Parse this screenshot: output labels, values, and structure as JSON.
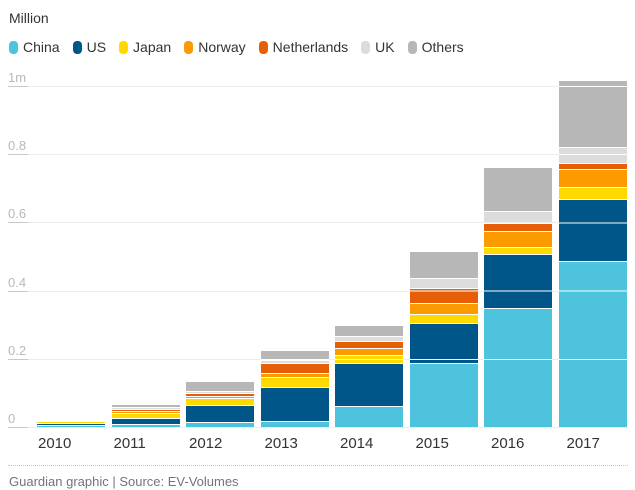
{
  "chart_data": {
    "type": "bar",
    "stacked": true,
    "title": "Million",
    "categories": [
      "2010",
      "2011",
      "2012",
      "2013",
      "2014",
      "2015",
      "2016",
      "2017"
    ],
    "series": [
      {
        "name": "China",
        "color": "#4dc3de",
        "values": [
          0.001,
          0.006,
          0.011,
          0.014,
          0.058,
          0.185,
          0.345,
          0.485
        ]
      },
      {
        "name": "US",
        "color": "#005689",
        "values": [
          0.002,
          0.016,
          0.048,
          0.096,
          0.122,
          0.113,
          0.155,
          0.178
        ]
      },
      {
        "name": "Japan",
        "color": "#ffd900",
        "values": [
          0.004,
          0.012,
          0.019,
          0.025,
          0.021,
          0.024,
          0.019,
          0.033
        ]
      },
      {
        "name": "Norway",
        "color": "#fb9b00",
        "values": [
          0,
          0.002,
          0.004,
          0.008,
          0.018,
          0.03,
          0.044,
          0.051
        ]
      },
      {
        "name": "Netherlands",
        "color": "#e65f08",
        "values": [
          0,
          0.002,
          0.007,
          0.026,
          0.017,
          0.04,
          0.021,
          0.014
        ]
      },
      {
        "name": "UK",
        "color": "#dcdcdc",
        "values": [
          0,
          0.002,
          0.004,
          0.006,
          0.013,
          0.027,
          0.032,
          0.045
        ]
      },
      {
        "name": "Others",
        "color": "#b7b7b7",
        "values": [
          0,
          0.006,
          0.026,
          0.026,
          0.03,
          0.076,
          0.126,
          0.194
        ]
      }
    ],
    "ylim": [
      0,
      1
    ],
    "yticks": [
      {
        "value": 0,
        "label": "0"
      },
      {
        "value": 0.2,
        "label": "0.2"
      },
      {
        "value": 0.4,
        "label": "0.4"
      },
      {
        "value": 0.6,
        "label": "0.6"
      },
      {
        "value": 0.8,
        "label": "0.8"
      },
      {
        "value": 1,
        "label": "1m"
      }
    ],
    "grid": true,
    "legend_position": "top"
  },
  "footer": {
    "credit": "Guardian graphic | Source: EV-Volumes"
  }
}
